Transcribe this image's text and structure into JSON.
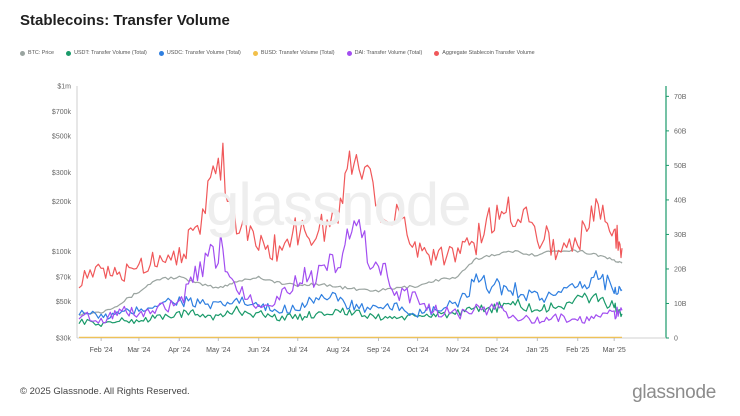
{
  "title": "Stablecoins: Transfer Volume",
  "footer": {
    "copyright": "© 2025 Glassnode. All Rights Reserved.",
    "brand": "glassnode"
  },
  "watermark": "glassnode",
  "colors": {
    "btc": "#9aa4a0",
    "usdt": "#1a9a6a",
    "usdc": "#2f7fe0",
    "busd": "#f2c04a",
    "dai": "#a24ef0",
    "aggregate": "#f0585a",
    "right_axis": "#1a9a6a"
  },
  "chart_data": {
    "type": "line",
    "title": "Stablecoins: Transfer Volume",
    "x_tick_labels": [
      "Feb '24",
      "Mar '24",
      "Apr '24",
      "May '24",
      "Jun '24",
      "Jul '24",
      "Aug '24",
      "Sep '24",
      "Oct '24",
      "Nov '24",
      "Dec '24",
      "Jan '25",
      "Feb '25",
      "Mar '25"
    ],
    "x": [
      "2024-01-15",
      "2024-02-01",
      "2024-02-15",
      "2024-03-01",
      "2024-03-15",
      "2024-04-01",
      "2024-04-15",
      "2024-05-01",
      "2024-05-15",
      "2024-06-01",
      "2024-06-15",
      "2024-07-01",
      "2024-07-15",
      "2024-08-01",
      "2024-08-15",
      "2024-09-01",
      "2024-09-15",
      "2024-10-01",
      "2024-10-15",
      "2024-11-01",
      "2024-11-15",
      "2024-12-01",
      "2024-12-15",
      "2025-01-01",
      "2025-01-15",
      "2025-02-01",
      "2025-02-15",
      "2025-03-01",
      "2025-03-07"
    ],
    "left_axis": {
      "scale": "log",
      "ticks": [
        "$30k",
        "$50k",
        "$70k",
        "$100k",
        "$200k",
        "$300k",
        "$500k",
        "$700k",
        "$1m"
      ],
      "tick_values": [
        30000,
        50000,
        70000,
        100000,
        200000,
        300000,
        500000,
        700000,
        1000000
      ],
      "ylim": [
        30000,
        1000000
      ]
    },
    "right_axis": {
      "scale": "linear",
      "ticks": [
        "0",
        "10B",
        "20B",
        "30B",
        "40B",
        "50B",
        "60B",
        "70B"
      ],
      "tick_values": [
        0,
        10,
        20,
        30,
        40,
        50,
        60,
        70
      ],
      "ylim": [
        0,
        73
      ],
      "unit": "B"
    },
    "legend_position": "top-left",
    "series": [
      {
        "name": "BTC: Price",
        "key": "btc",
        "axis": "left",
        "values": [
          42000,
          43000,
          48000,
          57000,
          68000,
          70000,
          64000,
          60000,
          66000,
          70000,
          65000,
          62000,
          64000,
          61000,
          59000,
          58000,
          60000,
          62000,
          67000,
          70000,
          90000,
          97000,
          100000,
          95000,
          102000,
          101000,
          96000,
          88000,
          85000
        ]
      },
      {
        "name": "USDT: Transfer Volume (Total)",
        "key": "usdt",
        "axis": "right",
        "values": [
          5,
          4,
          5,
          5,
          6,
          7,
          7,
          6,
          8,
          7,
          6,
          6,
          7,
          8,
          7,
          6,
          6,
          6,
          7,
          7,
          8,
          9,
          10,
          8,
          9,
          11,
          12,
          9,
          7
        ]
      },
      {
        "name": "USDC: Transfer Volume (Total)",
        "key": "usdc",
        "axis": "right",
        "values": [
          8,
          6,
          7,
          8,
          10,
          11,
          10,
          9,
          11,
          9,
          8,
          9,
          12,
          11,
          9,
          8,
          9,
          7,
          8,
          10,
          16,
          15,
          14,
          12,
          12,
          14,
          18,
          15,
          14
        ]
      },
      {
        "name": "BUSD: Transfer Volume (Total)",
        "key": "busd",
        "axis": "right",
        "values": [
          0.2,
          0.2,
          0.2,
          0.2,
          0.2,
          0.2,
          0.2,
          0.2,
          0.2,
          0.2,
          0.2,
          0.2,
          0.2,
          0.2,
          0.2,
          0.2,
          0.2,
          0.2,
          0.2,
          0.2,
          0.2,
          0.2,
          0.2,
          0.2,
          0.2,
          0.2,
          0.2,
          0.2,
          0.2
        ]
      },
      {
        "name": "DAI: Transfer Volume (Total)",
        "key": "dai",
        "axis": "right",
        "values": [
          7,
          5,
          8,
          7,
          8,
          10,
          18,
          26,
          15,
          10,
          11,
          18,
          17,
          22,
          32,
          20,
          14,
          11,
          8,
          7,
          8,
          9,
          6,
          5,
          6,
          5,
          6,
          7,
          8
        ]
      },
      {
        "name": "Aggregate Stablecoin Transfer Volume",
        "key": "aggregate",
        "axis": "right",
        "values": [
          17,
          19,
          18,
          21,
          23,
          25,
          30,
          55,
          35,
          27,
          26,
          31,
          30,
          36,
          56,
          40,
          34,
          27,
          24,
          25,
          28,
          36,
          38,
          31,
          26,
          28,
          37,
          32,
          26
        ]
      }
    ]
  }
}
